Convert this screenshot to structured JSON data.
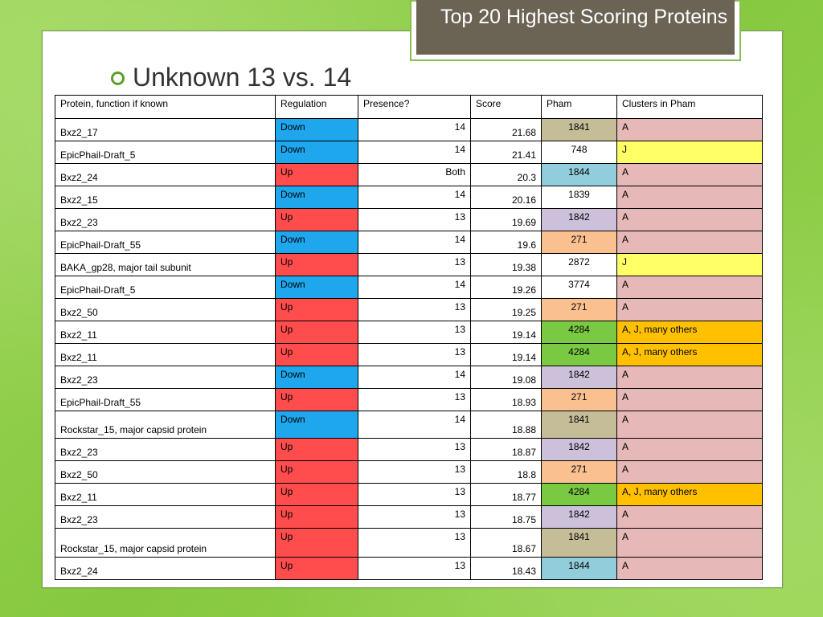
{
  "title": "Top 20 Highest Scoring Proteins",
  "heading": "Unknown 13 vs. 14",
  "colors": {
    "down": "#1ea7ec",
    "up": "#ff4c4c",
    "pham_olive": "#c4bd97",
    "pham_light_blue": "#92cddc",
    "pham_lavender": "#ccc0da",
    "pham_peach": "#fac090",
    "pham_green": "#7ac943",
    "cluster_pink": "#e6b8b7",
    "cluster_yellow": "#ffff66",
    "cluster_orange": "#ffc000"
  },
  "table": {
    "headers": [
      "Protein, function if known",
      "Regulation",
      "Presence?",
      "Score",
      "Pham",
      "Clusters in Pham"
    ],
    "rows": [
      {
        "protein": "Bxz2_17",
        "regulation": "Down",
        "presence": "14",
        "score": "21.68",
        "pham": "1841",
        "cluster": "A"
      },
      {
        "protein": "EpicPhail-Draft_5",
        "regulation": "Down",
        "presence": "14",
        "score": "21.41",
        "pham": "748",
        "cluster": "J"
      },
      {
        "protein": "Bxz2_24",
        "regulation": "Up",
        "presence": "Both",
        "score": "20.3",
        "pham": "1844",
        "cluster": "A"
      },
      {
        "protein": "Bxz2_15",
        "regulation": "Down",
        "presence": "14",
        "score": "20.16",
        "pham": "1839",
        "cluster": "A"
      },
      {
        "protein": "Bxz2_23",
        "regulation": "Up",
        "presence": "13",
        "score": "19.69",
        "pham": "1842",
        "cluster": "A"
      },
      {
        "protein": "EpicPhail-Draft_55",
        "regulation": "Down",
        "presence": "14",
        "score": "19.6",
        "pham": "271",
        "cluster": "A"
      },
      {
        "protein": "BAKA_gp28, major tail subunit",
        "regulation": "Up",
        "presence": "13",
        "score": "19.38",
        "pham": "2872",
        "cluster": "J"
      },
      {
        "protein": "EpicPhail-Draft_5",
        "regulation": "Down",
        "presence": "14",
        "score": "19.26",
        "pham": "3774",
        "cluster": "A"
      },
      {
        "protein": "Bxz2_50",
        "regulation": "Up",
        "presence": "13",
        "score": "19.25",
        "pham": "271",
        "cluster": "A"
      },
      {
        "protein": "Bxz2_11",
        "regulation": "Up",
        "presence": "13",
        "score": "19.14",
        "pham": "4284",
        "cluster": "A, J, many others"
      },
      {
        "protein": "Bxz2_11",
        "regulation": "Up",
        "presence": "13",
        "score": "19.14",
        "pham": "4284",
        "cluster": "A, J, many others"
      },
      {
        "protein": "Bxz2_23",
        "regulation": "Down",
        "presence": "14",
        "score": "19.08",
        "pham": "1842",
        "cluster": "A"
      },
      {
        "protein": "EpicPhail-Draft_55",
        "regulation": "Up",
        "presence": "13",
        "score": "18.93",
        "pham": "271",
        "cluster": "A"
      },
      {
        "protein": "Rockstar_15, major capsid protein",
        "regulation": "Down",
        "presence": "14",
        "score": "18.88",
        "pham": "1841",
        "cluster": "A"
      },
      {
        "protein": "Bxz2_23",
        "regulation": "Up",
        "presence": "13",
        "score": "18.87",
        "pham": "1842",
        "cluster": "A"
      },
      {
        "protein": "Bxz2_50",
        "regulation": "Up",
        "presence": "13",
        "score": "18.8",
        "pham": "271",
        "cluster": "A"
      },
      {
        "protein": "Bxz2_11",
        "regulation": "Up",
        "presence": "13",
        "score": "18.77",
        "pham": "4284",
        "cluster": "A, J, many others"
      },
      {
        "protein": "Bxz2_23",
        "regulation": "Up",
        "presence": "13",
        "score": "18.75",
        "pham": "1842",
        "cluster": "A"
      },
      {
        "protein": "Rockstar_15, major capsid protein",
        "regulation": "Up",
        "presence": "13",
        "score": "18.67",
        "pham": "1841",
        "cluster": "A"
      },
      {
        "protein": "Bxz2_24",
        "regulation": "Up",
        "presence": "13",
        "score": "18.43",
        "pham": "1844",
        "cluster": "A"
      }
    ]
  }
}
